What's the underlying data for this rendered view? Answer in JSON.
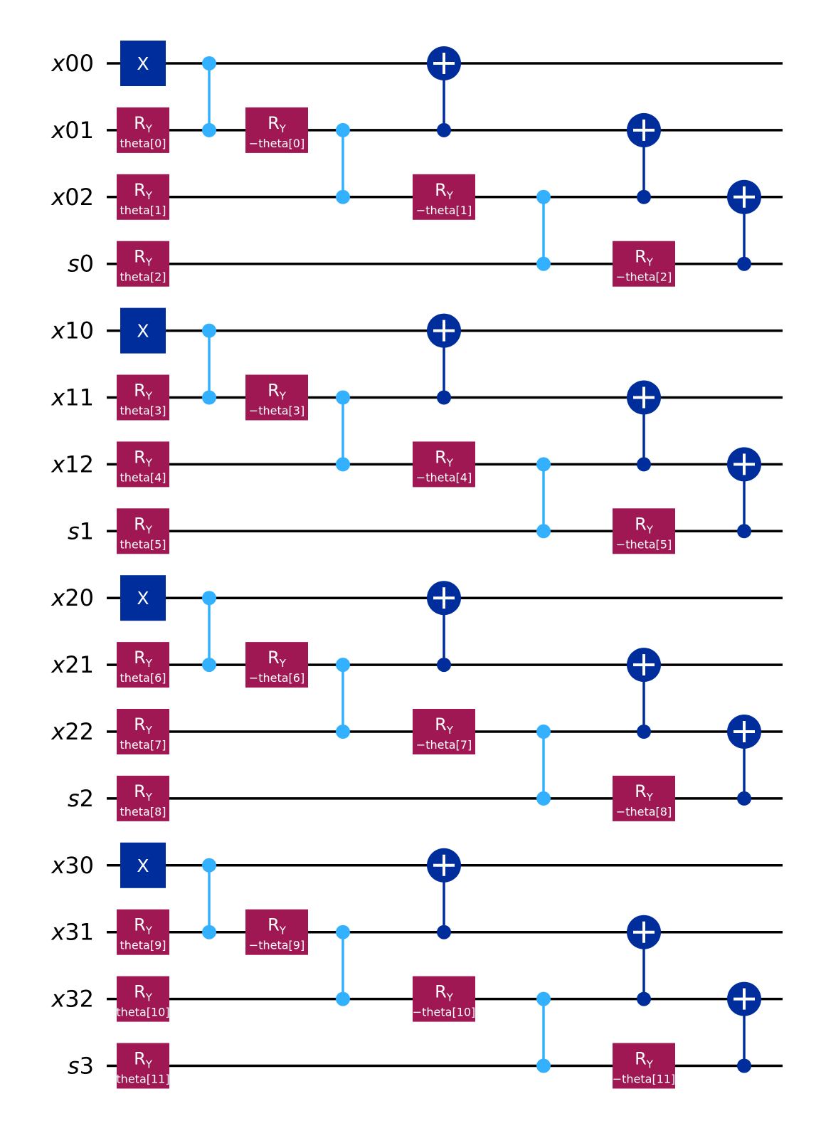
{
  "colors": {
    "background": "#ffffff",
    "wire": "#000000",
    "x_gate": "#002d9c",
    "ry_gate": "#9f1853",
    "cz": "#33b1ff",
    "cx": "#002d9c",
    "gate_text": "#ffffff"
  },
  "qubits": [
    {
      "letter": "x",
      "index": "00"
    },
    {
      "letter": "x",
      "index": "01"
    },
    {
      "letter": "x",
      "index": "02"
    },
    {
      "letter": "s",
      "index": "0"
    },
    {
      "letter": "x",
      "index": "10"
    },
    {
      "letter": "x",
      "index": "11"
    },
    {
      "letter": "x",
      "index": "12"
    },
    {
      "letter": "s",
      "index": "1"
    },
    {
      "letter": "x",
      "index": "20"
    },
    {
      "letter": "x",
      "index": "21"
    },
    {
      "letter": "x",
      "index": "22"
    },
    {
      "letter": "s",
      "index": "2"
    },
    {
      "letter": "x",
      "index": "30"
    },
    {
      "letter": "x",
      "index": "31"
    },
    {
      "letter": "x",
      "index": "32"
    },
    {
      "letter": "s",
      "index": "3"
    }
  ],
  "gate_labels": {
    "x": "X",
    "ry_main": "R",
    "ry_sub": "Y"
  },
  "gates": [
    {
      "type": "x",
      "qubit": 0,
      "col": 0
    },
    {
      "type": "ry",
      "qubit": 1,
      "col": 0,
      "param": "theta[0]"
    },
    {
      "type": "ry",
      "qubit": 2,
      "col": 0,
      "param": "theta[1]"
    },
    {
      "type": "ry",
      "qubit": 3,
      "col": 0,
      "param": "theta[2]"
    },
    {
      "type": "cz",
      "qubits": [
        0,
        1
      ],
      "col": 1
    },
    {
      "type": "ry",
      "qubit": 1,
      "col": 2,
      "param": "−theta[0]"
    },
    {
      "type": "cz",
      "qubits": [
        1,
        2
      ],
      "col": 3
    },
    {
      "type": "cx",
      "control": 1,
      "target": 0,
      "col": 4
    },
    {
      "type": "ry",
      "qubit": 2,
      "col": 4,
      "param": "−theta[1]"
    },
    {
      "type": "cz",
      "qubits": [
        2,
        3
      ],
      "col": 5
    },
    {
      "type": "cx",
      "control": 2,
      "target": 1,
      "col": 6
    },
    {
      "type": "ry",
      "qubit": 3,
      "col": 6,
      "param": "−theta[2]"
    },
    {
      "type": "cx",
      "control": 3,
      "target": 2,
      "col": 7
    },
    {
      "type": "x",
      "qubit": 4,
      "col": 0
    },
    {
      "type": "ry",
      "qubit": 5,
      "col": 0,
      "param": "theta[3]"
    },
    {
      "type": "ry",
      "qubit": 6,
      "col": 0,
      "param": "theta[4]"
    },
    {
      "type": "ry",
      "qubit": 7,
      "col": 0,
      "param": "theta[5]"
    },
    {
      "type": "cz",
      "qubits": [
        4,
        5
      ],
      "col": 1
    },
    {
      "type": "ry",
      "qubit": 5,
      "col": 2,
      "param": "−theta[3]"
    },
    {
      "type": "cz",
      "qubits": [
        5,
        6
      ],
      "col": 3
    },
    {
      "type": "cx",
      "control": 5,
      "target": 4,
      "col": 4
    },
    {
      "type": "ry",
      "qubit": 6,
      "col": 4,
      "param": "−theta[4]"
    },
    {
      "type": "cz",
      "qubits": [
        6,
        7
      ],
      "col": 5
    },
    {
      "type": "cx",
      "control": 6,
      "target": 5,
      "col": 6
    },
    {
      "type": "ry",
      "qubit": 7,
      "col": 6,
      "param": "−theta[5]"
    },
    {
      "type": "cx",
      "control": 7,
      "target": 6,
      "col": 7
    },
    {
      "type": "x",
      "qubit": 8,
      "col": 0
    },
    {
      "type": "ry",
      "qubit": 9,
      "col": 0,
      "param": "theta[6]"
    },
    {
      "type": "ry",
      "qubit": 10,
      "col": 0,
      "param": "theta[7]"
    },
    {
      "type": "ry",
      "qubit": 11,
      "col": 0,
      "param": "theta[8]"
    },
    {
      "type": "cz",
      "qubits": [
        8,
        9
      ],
      "col": 1
    },
    {
      "type": "ry",
      "qubit": 9,
      "col": 2,
      "param": "−theta[6]"
    },
    {
      "type": "cz",
      "qubits": [
        9,
        10
      ],
      "col": 3
    },
    {
      "type": "cx",
      "control": 9,
      "target": 8,
      "col": 4
    },
    {
      "type": "ry",
      "qubit": 10,
      "col": 4,
      "param": "−theta[7]"
    },
    {
      "type": "cz",
      "qubits": [
        10,
        11
      ],
      "col": 5
    },
    {
      "type": "cx",
      "control": 10,
      "target": 9,
      "col": 6
    },
    {
      "type": "ry",
      "qubit": 11,
      "col": 6,
      "param": "−theta[8]"
    },
    {
      "type": "cx",
      "control": 11,
      "target": 10,
      "col": 7
    },
    {
      "type": "x",
      "qubit": 12,
      "col": 0
    },
    {
      "type": "ry",
      "qubit": 13,
      "col": 0,
      "param": "theta[9]"
    },
    {
      "type": "ry",
      "qubit": 14,
      "col": 0,
      "param": "theta[10]"
    },
    {
      "type": "ry",
      "qubit": 15,
      "col": 0,
      "param": "theta[11]"
    },
    {
      "type": "cz",
      "qubits": [
        12,
        13
      ],
      "col": 1
    },
    {
      "type": "ry",
      "qubit": 13,
      "col": 2,
      "param": "−theta[9]"
    },
    {
      "type": "cz",
      "qubits": [
        13,
        14
      ],
      "col": 3
    },
    {
      "type": "cx",
      "control": 13,
      "target": 12,
      "col": 4
    },
    {
      "type": "ry",
      "qubit": 14,
      "col": 4,
      "param": "−theta[10]"
    },
    {
      "type": "cz",
      "qubits": [
        14,
        15
      ],
      "col": 5
    },
    {
      "type": "cx",
      "control": 14,
      "target": 13,
      "col": 6
    },
    {
      "type": "ry",
      "qubit": 15,
      "col": 6,
      "param": "−theta[11]"
    },
    {
      "type": "cx",
      "control": 15,
      "target": 14,
      "col": 7
    }
  ]
}
